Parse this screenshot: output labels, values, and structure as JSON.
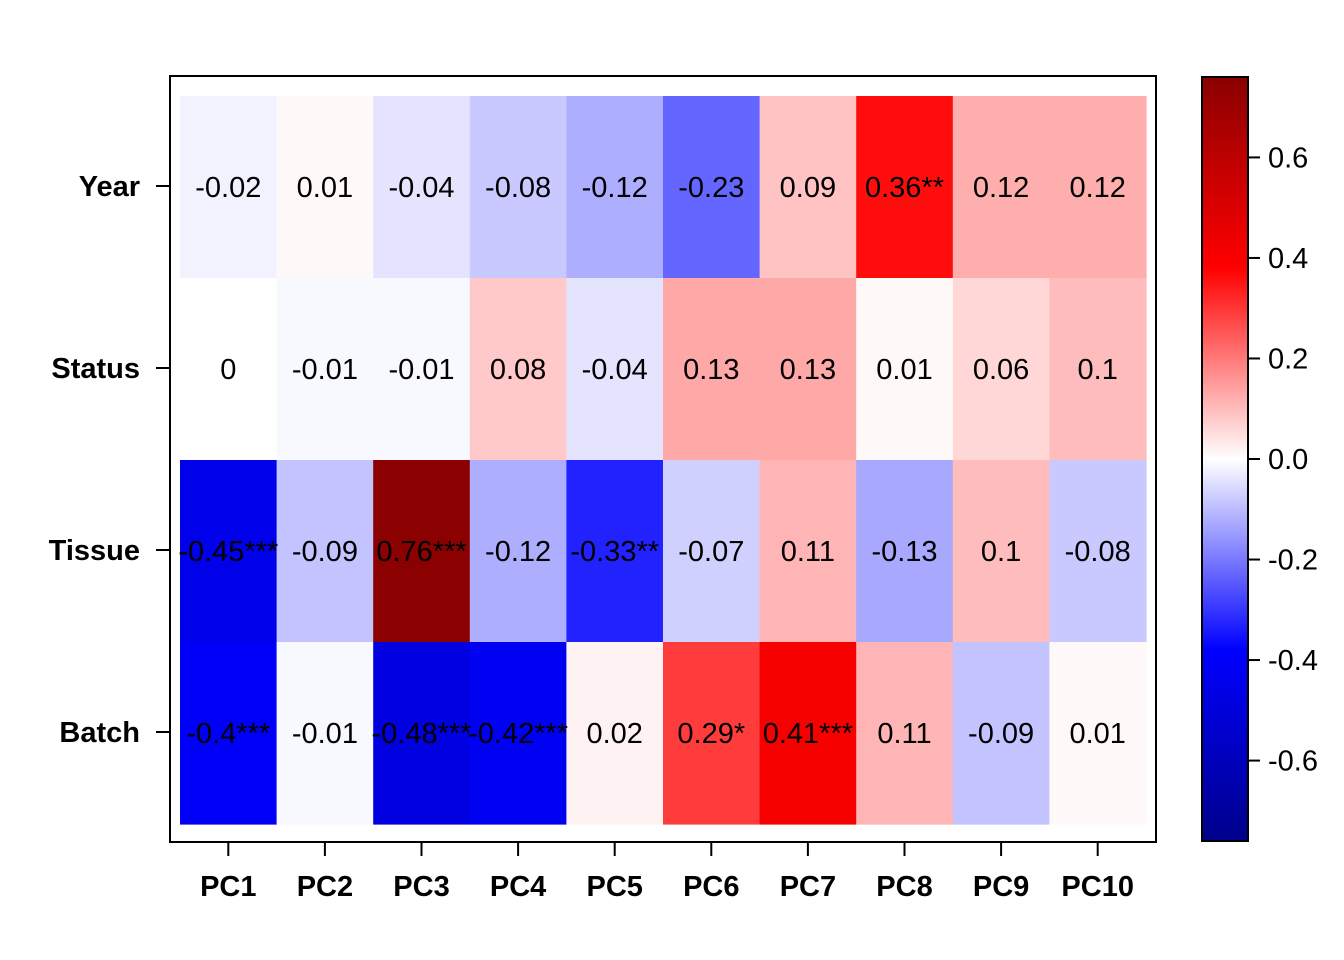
{
  "chart_data": {
    "type": "heatmap",
    "title": "",
    "xlabel": "",
    "ylabel": "",
    "columns": [
      "PC1",
      "PC2",
      "PC3",
      "PC4",
      "PC5",
      "PC6",
      "PC7",
      "PC8",
      "PC9",
      "PC10"
    ],
    "rows": [
      "Year",
      "Status",
      "Tissue",
      "Batch"
    ],
    "values": [
      [
        -0.02,
        0.01,
        -0.04,
        -0.08,
        -0.12,
        -0.23,
        0.09,
        0.36,
        0.12,
        0.12
      ],
      [
        0,
        -0.01,
        -0.01,
        0.08,
        -0.04,
        0.13,
        0.13,
        0.01,
        0.06,
        0.1
      ],
      [
        -0.45,
        -0.09,
        0.76,
        -0.12,
        -0.33,
        -0.07,
        0.11,
        -0.13,
        0.1,
        -0.08
      ],
      [
        -0.4,
        -0.01,
        -0.48,
        -0.42,
        0.02,
        0.29,
        0.41,
        0.11,
        -0.09,
        0.01
      ]
    ],
    "labels": [
      [
        "-0.02",
        "0.01",
        "-0.04",
        "-0.08",
        "-0.12",
        "-0.23",
        "0.09",
        "0.36**",
        "0.12",
        "0.12"
      ],
      [
        "0",
        "-0.01",
        "-0.01",
        "0.08",
        "-0.04",
        "0.13",
        "0.13",
        "0.01",
        "0.06",
        "0.1"
      ],
      [
        "-0.45***",
        "-0.09",
        "0.76***",
        "-0.12",
        "-0.33**",
        "-0.07",
        "0.11",
        "-0.13",
        "0.1",
        "-0.08"
      ],
      [
        "-0.4***",
        "-0.01",
        "-0.48***",
        "-0.42***",
        "0.02",
        "0.29*",
        "0.41***",
        "0.11",
        "-0.09",
        "0.01"
      ]
    ],
    "color_scale": {
      "range": [
        -0.76,
        0.76
      ],
      "stops": [
        "#00008B",
        "#0000FF",
        "#FFFFFF",
        "#FF0000",
        "#8B0000"
      ],
      "ticks": [
        0.6,
        0.4,
        0.2,
        0.0,
        -0.2,
        -0.4,
        -0.6
      ],
      "tick_labels": [
        "0.6",
        "0.4",
        "0.2",
        "0.0",
        "-0.2",
        "-0.4",
        "-0.6"
      ],
      "placement": "right"
    }
  }
}
